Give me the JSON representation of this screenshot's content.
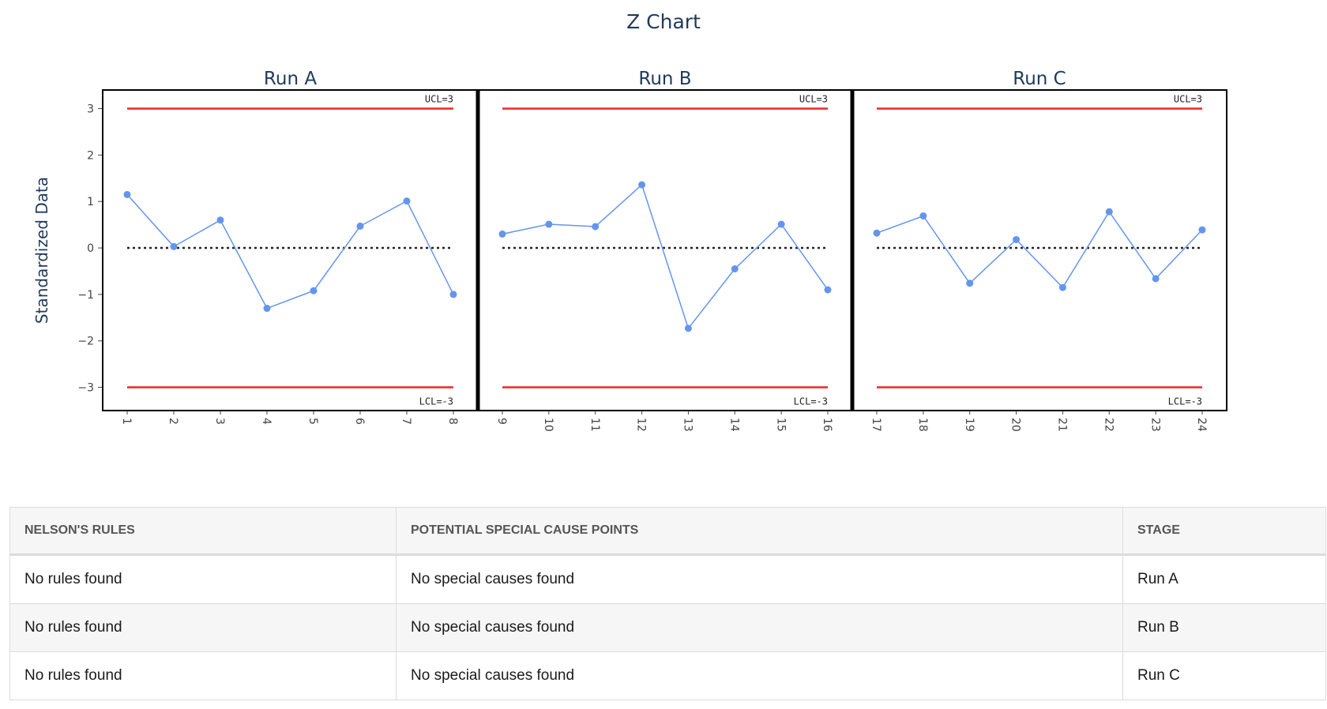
{
  "chart_data": {
    "type": "line",
    "title": "Z Chart",
    "ylabel": "Standardized Data",
    "ylim": [
      -3.5,
      3.4
    ],
    "yticks": [
      3,
      2,
      1,
      0,
      -1,
      -2,
      -3
    ],
    "ytick_labels": [
      "3",
      "2",
      "1",
      "0",
      "−1",
      "−2",
      "−3"
    ],
    "center_line": 0,
    "ucl": 3,
    "lcl": -3,
    "ucl_label": "UCL=3",
    "lcl_label": "LCL=-3",
    "colors": {
      "series": "#6495ED",
      "limits": "#e8312f",
      "center": "#222222",
      "frame": "#000000"
    },
    "panels": [
      {
        "title": "Run A",
        "x": [
          1,
          2,
          3,
          4,
          5,
          6,
          7,
          8
        ],
        "y": [
          1.15,
          0.03,
          0.6,
          -1.3,
          -0.92,
          0.47,
          1.01,
          -1.0
        ]
      },
      {
        "title": "Run B",
        "x": [
          9,
          10,
          11,
          12,
          13,
          14,
          15,
          16
        ],
        "y": [
          0.3,
          0.51,
          0.46,
          1.36,
          -1.73,
          -0.45,
          0.51,
          -0.9
        ]
      },
      {
        "title": "Run C",
        "x": [
          17,
          18,
          19,
          20,
          21,
          22,
          23,
          24
        ],
        "y": [
          0.32,
          0.69,
          -0.76,
          0.18,
          -0.85,
          0.78,
          -0.66,
          0.39
        ]
      }
    ]
  },
  "table": {
    "headers": [
      "NELSON'S RULES",
      "POTENTIAL SPECIAL CAUSE POINTS",
      "STAGE"
    ],
    "rows": [
      [
        "No rules found",
        "No special causes found",
        "Run A"
      ],
      [
        "No rules found",
        "No special causes found",
        "Run B"
      ],
      [
        "No rules found",
        "No special causes found",
        "Run C"
      ]
    ]
  }
}
